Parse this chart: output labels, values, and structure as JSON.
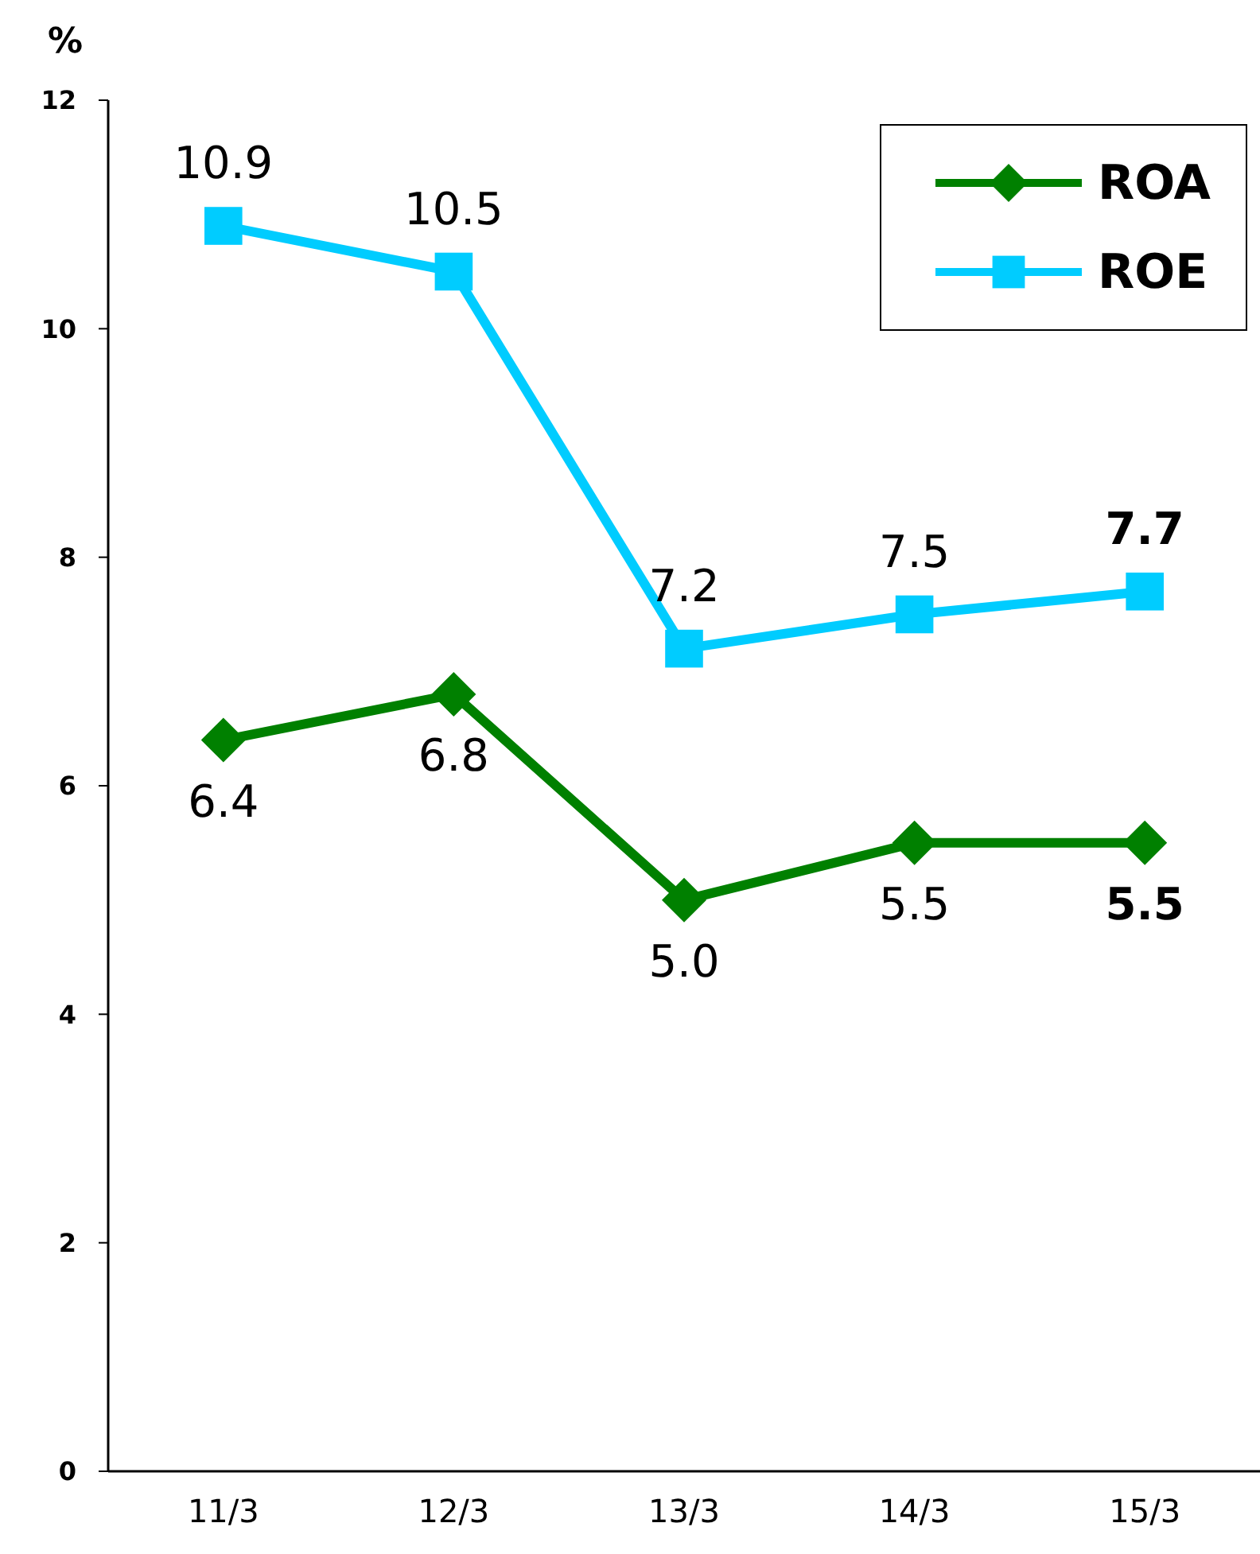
{
  "chart_data": {
    "type": "line",
    "ylabel": "%",
    "categories": [
      "11/3",
      "12/3",
      "13/3",
      "14/3",
      "15/3"
    ],
    "series": [
      {
        "name": "ROA",
        "color": "#008000",
        "marker": "diamond",
        "values": [
          6.4,
          6.8,
          5.0,
          5.5,
          5.5
        ],
        "value_labels": [
          "6.4",
          "6.8",
          "5.0",
          "5.5",
          "5.5"
        ]
      },
      {
        "name": "ROE",
        "color": "#00ccff",
        "marker": "square",
        "values": [
          10.9,
          10.5,
          7.2,
          7.5,
          7.7
        ],
        "value_labels": [
          "10.9",
          "10.5",
          "7.2",
          "7.5",
          "7.7"
        ]
      }
    ],
    "ylim": [
      0,
      12
    ],
    "yticks": [
      0,
      2,
      4,
      6,
      8,
      10,
      12
    ],
    "grid": false,
    "legend": "top right",
    "line_style": "solid"
  }
}
